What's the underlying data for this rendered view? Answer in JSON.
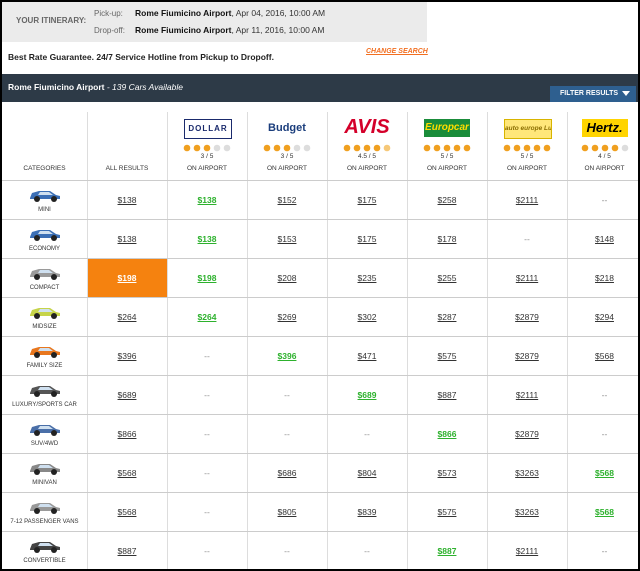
{
  "itinerary": {
    "label": "YOUR ITINERARY:",
    "pickup": {
      "label": "Pick-up:",
      "location": "Rome Fiumicino Airport",
      "time": ", Apr 04, 2016, 10:00 AM"
    },
    "dropoff": {
      "label": "Drop-off:",
      "location": "Rome Fiumicino Airport",
      "time": ", Apr 11, 2016, 10:00 AM"
    }
  },
  "guarantee": "Best Rate Guarantee. 24/7 Service Hotline from Pickup to Dropoff.",
  "change_search": "CHANGE SEARCH",
  "results_bar": {
    "location": "Rome Fiumicino Airport",
    "count": " - 139 Cars Available",
    "filter": "FILTER RESULTS"
  },
  "table": {
    "headers": {
      "categories": "CATEGORIES",
      "all": "ALL RESULTS"
    },
    "vendors": [
      {
        "name": "DOLLAR",
        "stars": 3,
        "rating": "3 / 5",
        "location": "ON AIRPORT"
      },
      {
        "name": "Budget",
        "stars": 3,
        "rating": "3 / 5",
        "location": "ON AIRPORT"
      },
      {
        "name": "AVIS",
        "stars": 4.5,
        "rating": "4.5 / 5",
        "location": "ON AIRPORT"
      },
      {
        "name": "Europcar",
        "stars": 5,
        "rating": "5 / 5",
        "location": "ON AIRPORT"
      },
      {
        "name": "auto europe Luxury",
        "stars": 5,
        "rating": "5 / 5",
        "location": "ON AIRPORT"
      },
      {
        "name": "Hertz.",
        "stars": 4,
        "rating": "4 / 5",
        "location": "ON AIRPORT"
      }
    ],
    "rows": [
      {
        "category": "MINI",
        "all": "$138",
        "prices": [
          "$138",
          "$152",
          "$175",
          "$258",
          "$2111",
          "--"
        ],
        "best": 0
      },
      {
        "category": "ECONOMY",
        "all": "$138",
        "prices": [
          "$138",
          "$153",
          "$175",
          "$178",
          "--",
          "$148"
        ],
        "best": 0
      },
      {
        "category": "COMPACT",
        "all": "$198",
        "prices": [
          "$198",
          "$208",
          "$235",
          "$255",
          "$2111",
          "$218"
        ],
        "best": 0,
        "highlight": true
      },
      {
        "category": "MIDSIZE",
        "all": "$264",
        "prices": [
          "$264",
          "$269",
          "$302",
          "$287",
          "$2879",
          "$294"
        ],
        "best": 0
      },
      {
        "category": "FAMILY SIZE",
        "all": "$396",
        "prices": [
          "--",
          "$396",
          "$471",
          "$575",
          "$2879",
          "$568"
        ],
        "best": 1
      },
      {
        "category": "LUXURY/SPORTS CAR",
        "all": "$689",
        "prices": [
          "--",
          "--",
          "$689",
          "$887",
          "$2111",
          "--"
        ],
        "best": 2
      },
      {
        "category": "SUV/4WD",
        "all": "$866",
        "prices": [
          "--",
          "--",
          "--",
          "$866",
          "$2879",
          "--"
        ],
        "best": 3
      },
      {
        "category": "MINIVAN",
        "all": "$568",
        "prices": [
          "--",
          "$686",
          "$804",
          "$573",
          "$3263",
          "$568"
        ],
        "best": 5
      },
      {
        "category": "7-12 PASSENGER VANS",
        "all": "$568",
        "prices": [
          "--",
          "$805",
          "$839",
          "$575",
          "$3263",
          "$568"
        ],
        "best": 5
      },
      {
        "category": "CONVERTIBLE",
        "all": "$887",
        "prices": [
          "--",
          "--",
          "--",
          "$887",
          "$2111",
          "--"
        ],
        "best": 3
      }
    ]
  }
}
